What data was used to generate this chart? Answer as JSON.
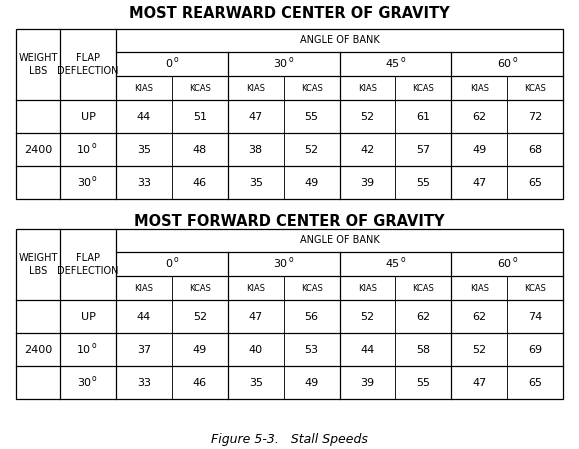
{
  "title1": "MOST REARWARD CENTER OF GRAVITY",
  "title2": "MOST FORWARD CENTER OF GRAVITY",
  "caption": "Figure 5-3.   Stall Speeds",
  "angle_of_bank": "ANGLE OF BANK",
  "weight": "2400",
  "rear_data": [
    [
      44,
      51,
      47,
      55,
      52,
      61,
      62,
      72
    ],
    [
      35,
      48,
      38,
      52,
      42,
      57,
      49,
      68
    ],
    [
      33,
      46,
      35,
      49,
      39,
      55,
      47,
      65
    ]
  ],
  "fwd_data": [
    [
      44,
      52,
      47,
      56,
      52,
      62,
      62,
      74
    ],
    [
      37,
      49,
      40,
      53,
      44,
      58,
      52,
      69
    ],
    [
      33,
      46,
      35,
      49,
      39,
      55,
      47,
      65
    ]
  ],
  "bg_color": "#ffffff",
  "line_color": "#000000",
  "title_fontsize": 10.5,
  "header_fontsize": 7.5,
  "data_fontsize": 8,
  "caption_fontsize": 9,
  "fig_width": 5.79,
  "fig_height": 4.49,
  "dpi": 100
}
